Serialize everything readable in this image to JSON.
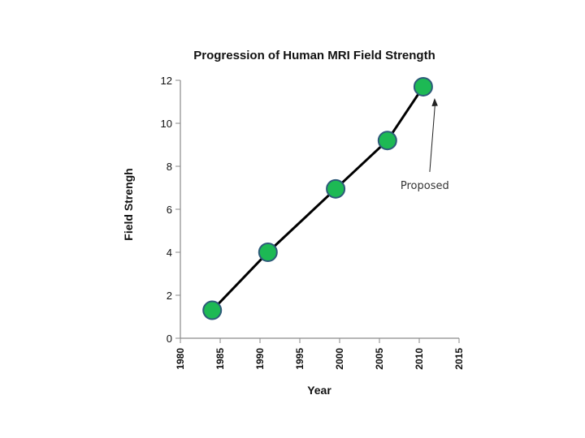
{
  "chart_data": {
    "type": "line",
    "title": "Progression of Human MRI Field Strength",
    "xlabel": "Year",
    "ylabel": "Field Strengh",
    "xlim": [
      1980,
      2015
    ],
    "ylim": [
      0,
      12
    ],
    "x_ticks": [
      "1980",
      "1985",
      "1990",
      "1995",
      "2000",
      "2005",
      "2010",
      "2015"
    ],
    "y_ticks": [
      "0",
      "2",
      "4",
      "6",
      "8",
      "10",
      "12"
    ],
    "series": [
      {
        "name": "Field Strength",
        "x": [
          1984,
          1991,
          1999.5,
          2006,
          2010.5
        ],
        "y": [
          1.3,
          4.0,
          6.95,
          9.2,
          11.7
        ]
      }
    ],
    "annotations": [
      {
        "text": "Proposed",
        "target_x": 2010.5,
        "target_y": 11.7
      }
    ],
    "colors": {
      "marker_fill": "#1db954",
      "marker_stroke": "#2e5a7a",
      "line": "#000000",
      "axis": "#8a8a8a"
    }
  }
}
